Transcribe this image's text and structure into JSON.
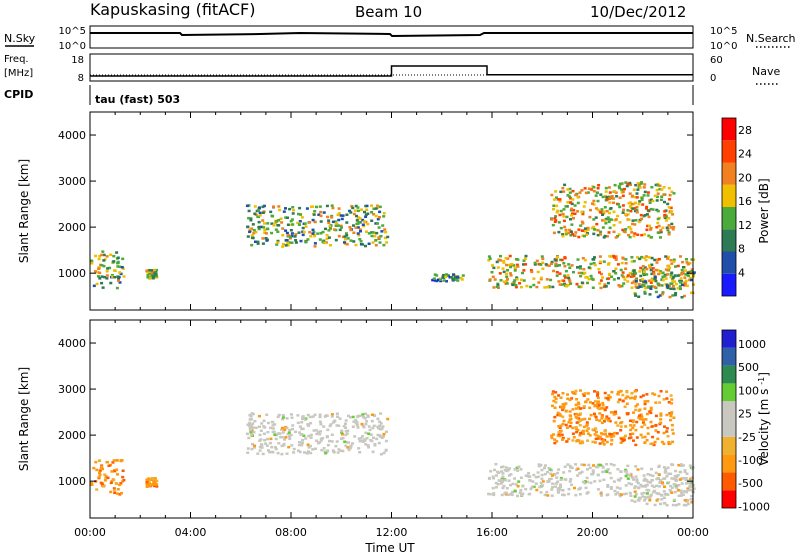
{
  "header": {
    "station": "Kapuskasing (fitACF)",
    "beam": "Beam 10",
    "date": "10/Dec/2012"
  },
  "noise_panel": {
    "left_label": "N.Sky",
    "right_label": "N.Search",
    "left_ticks": [
      "10^5",
      "10^0"
    ],
    "right_ticks": [
      "10^5",
      "10^0"
    ]
  },
  "freq_panel": {
    "left_label_1": "Freq.",
    "left_label_2": "[MHz]",
    "left_ticks": [
      "18",
      "8"
    ],
    "right_label": "Nave",
    "right_ticks": [
      "60",
      "0"
    ],
    "freq_series": {
      "name": "Freq.",
      "x_hours": [
        0,
        12,
        12,
        15.8,
        15.8,
        24
      ],
      "values": [
        8.6,
        8.6,
        13.8,
        13.8,
        9.2,
        9.2
      ]
    }
  },
  "cpid": {
    "label": "CPID",
    "value": "tau (fast) 503"
  },
  "colors": {
    "power_scale": [
      "#1a1aff",
      "#1f4fa8",
      "#2e7a55",
      "#4aaa3a",
      "#f0c000",
      "#f08020",
      "#ff4000",
      "#ff0000"
    ],
    "velocity_scale": [
      "#ff0000",
      "#ff5a00",
      "#ff9a10",
      "#f0b030",
      "#c8c8c0",
      "#c8c8c0",
      "#66cc33",
      "#2f8a4f",
      "#3060a8",
      "#2020d0"
    ]
  },
  "chart_data": [
    {
      "type": "heatmap",
      "name": "Power",
      "xlabel": "",
      "ylabel": "Slant Range [km]",
      "x_ticks": [
        "00:00",
        "04:00",
        "08:00",
        "12:00",
        "16:00",
        "20:00",
        "00:00"
      ],
      "xlim_hours": [
        0,
        24
      ],
      "y_ticks": [
        "1000",
        "2000",
        "3000",
        "4000"
      ],
      "ylim": [
        200,
        4500
      ],
      "colorbar": {
        "label": "Power [dB]",
        "ticks": [
          "4",
          "8",
          "12",
          "16",
          "20",
          "24",
          "28"
        ],
        "range": [
          0,
          30
        ]
      },
      "echo_regions": [
        {
          "t_start": 0.0,
          "t_end": 1.3,
          "range_low": 700,
          "range_high": 1500,
          "power_db": 14
        },
        {
          "t_start": 2.2,
          "t_end": 2.6,
          "range_low": 900,
          "range_high": 1100,
          "power_db": 12
        },
        {
          "t_start": 6.2,
          "t_end": 11.8,
          "range_low": 1600,
          "range_high": 2500,
          "power_db": 14
        },
        {
          "t_start": 13.5,
          "t_end": 14.8,
          "range_low": 850,
          "range_high": 1000,
          "power_db": 10
        },
        {
          "t_start": 15.8,
          "t_end": 24.0,
          "range_low": 700,
          "range_high": 1400,
          "power_db": 16
        },
        {
          "t_start": 18.3,
          "t_end": 23.2,
          "range_low": 1800,
          "range_high": 3000,
          "power_db": 18
        },
        {
          "t_start": 21.5,
          "t_end": 24.0,
          "range_low": 500,
          "range_high": 1100,
          "power_db": 12
        }
      ]
    },
    {
      "type": "heatmap",
      "name": "Velocity",
      "xlabel": "Time UT",
      "ylabel": "Slant Range [km]",
      "x_ticks": [
        "00:00",
        "04:00",
        "08:00",
        "12:00",
        "16:00",
        "20:00",
        "00:00"
      ],
      "xlim_hours": [
        0,
        24
      ],
      "y_ticks": [
        "1000",
        "2000",
        "3000",
        "4000"
      ],
      "ylim": [
        200,
        4500
      ],
      "colorbar": {
        "label": "Velocity [m s^-1]",
        "ticks": [
          "1000",
          "500",
          "100",
          "25",
          "-25",
          "-100",
          "-500",
          "-1000"
        ]
      },
      "echo_regions": [
        {
          "t_start": 0.0,
          "t_end": 1.3,
          "range_low": 700,
          "range_high": 1500,
          "velocity": -150
        },
        {
          "t_start": 2.2,
          "t_end": 2.6,
          "range_low": 900,
          "range_high": 1100,
          "velocity": -200
        },
        {
          "t_start": 6.2,
          "t_end": 11.8,
          "range_low": 1600,
          "range_high": 2500,
          "velocity": 0
        },
        {
          "t_start": 15.8,
          "t_end": 24.0,
          "range_low": 700,
          "range_high": 1400,
          "velocity": 0
        },
        {
          "t_start": 18.3,
          "t_end": 23.2,
          "range_low": 1800,
          "range_high": 3000,
          "velocity": -200
        },
        {
          "t_start": 21.5,
          "t_end": 24.0,
          "range_low": 500,
          "range_high": 1100,
          "velocity": 0
        }
      ]
    }
  ]
}
